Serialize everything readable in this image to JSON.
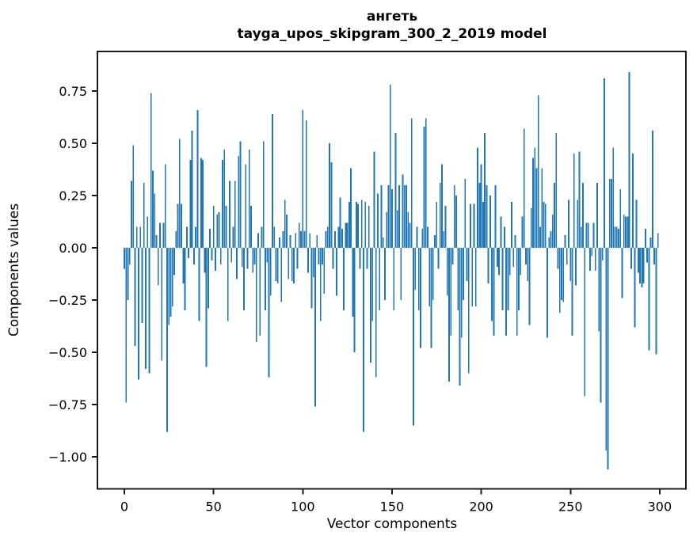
{
  "chart_data": {
    "type": "bar",
    "title_line1": "ангеть",
    "title_line2": "tayga_upos_skipgram_300_2_2019 model",
    "xlabel": "Vector components",
    "ylabel": "Components values",
    "bar_color": "#1f77b4",
    "spine_color": "#1a1a1a",
    "x_start": 0,
    "n_components": 300,
    "xlim": [
      -15,
      314
    ],
    "ylim": [
      -1.15,
      0.94
    ],
    "grid": false,
    "legend": null,
    "xticks": {
      "values": [
        0,
        50,
        100,
        150,
        200,
        250,
        300
      ],
      "labels": [
        "0",
        "50",
        "100",
        "150",
        "200",
        "250",
        "300"
      ]
    },
    "yticks": {
      "values": [
        0.75,
        0.5,
        0.25,
        0.0,
        -0.25,
        -0.5,
        -0.75,
        -1.0
      ],
      "labels": [
        "0.75",
        "0.50",
        "0.25",
        "0.00",
        "−0.25",
        "−0.50",
        "−0.75",
        "−1.00"
      ]
    },
    "values": [
      -0.1,
      -0.74,
      -0.25,
      -0.08,
      0.32,
      0.49,
      -0.47,
      0.1,
      -0.63,
      0.1,
      -0.36,
      0.31,
      -0.58,
      0.15,
      -0.6,
      0.74,
      0.37,
      0.26,
      0.06,
      -0.18,
      0.12,
      -0.54,
      0.12,
      0.4,
      -0.88,
      -0.37,
      -0.33,
      -0.28,
      -0.13,
      0.08,
      0.21,
      0.52,
      0.21,
      -0.17,
      -0.3,
      0.1,
      -0.05,
      0.42,
      0.56,
      -0.08,
      0.1,
      0.66,
      -0.35,
      0.43,
      0.42,
      -0.12,
      -0.57,
      -0.29,
      0.09,
      -0.06,
      0.2,
      -0.11,
      0.16,
      0.17,
      -0.08,
      0.42,
      0.47,
      0.2,
      -0.35,
      0.32,
      -0.07,
      0.1,
      0.32,
      -0.15,
      0.44,
      0.51,
      -0.09,
      -0.3,
      0.4,
      -0.1,
      0.47,
      0.2,
      -0.12,
      -0.08,
      -0.45,
      0.07,
      -0.42,
      0.1,
      0.51,
      -0.3,
      -0.07,
      -0.62,
      -0.23,
      0.64,
      0.1,
      -0.16,
      -0.17,
      0.05,
      -0.26,
      0.08,
      0.23,
      0.16,
      -0.15,
      0.06,
      -0.16,
      -0.17,
      0.07,
      -0.1,
      0.12,
      0.08,
      0.66,
      0.08,
      0.61,
      -0.12,
      0.07,
      -0.29,
      -0.14,
      -0.76,
      0.06,
      -0.08,
      -0.35,
      -0.08,
      -0.22,
      0.08,
      0.1,
      0.5,
      0.41,
      -0.1,
      0.08,
      -0.23,
      0.1,
      0.24,
      0.09,
      -0.3,
      0.12,
      0.12,
      0.22,
      0.38,
      -0.33,
      -0.5,
      0.22,
      0.21,
      -0.1,
      0.23,
      -0.88,
      0.22,
      -0.1,
      0.2,
      -0.55,
      -0.35,
      0.46,
      -0.62,
      0.26,
      -0.3,
      0.3,
      0.05,
      -0.25,
      0.17,
      0.3,
      0.78,
      0.28,
      -0.3,
      0.55,
      0.18,
      0.3,
      -0.25,
      0.35,
      0.3,
      0.3,
      0.17,
      0.12,
      0.62,
      -0.85,
      -0.2,
      0.1,
      -0.3,
      -0.48,
      0.09,
      0.58,
      0.62,
      0.1,
      -0.28,
      -0.48,
      -0.25,
      0.06,
      0.22,
      -0.1,
      0.31,
      0.4,
      0.08,
      0.2,
      -0.23,
      -0.64,
      -0.42,
      -0.08,
      0.3,
      0.25,
      -0.3,
      -0.66,
      -0.43,
      -0.25,
      0.33,
      -0.16,
      -0.6,
      0.21,
      -0.28,
      0.21,
      -0.28,
      0.48,
      0.31,
      0.4,
      0.22,
      0.55,
      0.3,
      -0.17,
      0.25,
      -0.35,
      -0.42,
      0.3,
      -0.09,
      -0.13,
      0.15,
      -0.3,
      0.1,
      -0.42,
      -0.3,
      -0.13,
      0.22,
      -0.09,
      0.06,
      -0.42,
      -0.3,
      -0.13,
      0.15,
      0.57,
      -0.08,
      -0.16,
      -0.37,
      0.19,
      0.43,
      0.48,
      0.38,
      0.73,
      0.1,
      0.38,
      0.22,
      0.21,
      -0.43,
      0.05,
      0.08,
      0.16,
      0.31,
      0.55,
      -0.1,
      -0.31,
      -0.25,
      -0.26,
      0.06,
      -0.08,
      0.23,
      -0.16,
      -0.42,
      0.45,
      -0.18,
      0.23,
      0.46,
      0.1,
      0.31,
      -0.71,
      0.12,
      0.12,
      -0.11,
      -0.04,
      0.12,
      -0.11,
      0.31,
      -0.4,
      -0.74,
      -0.06,
      0.81,
      -0.97,
      -1.06,
      0.33,
      0.33,
      0.48,
      0.1,
      0.1,
      0.09,
      0.28,
      -0.24,
      0.16,
      0.15,
      0.15,
      0.84,
      -0.1,
      0.45,
      -0.38,
      0.23,
      -0.12,
      -0.17,
      -0.19,
      -0.17,
      0.09,
      -0.07,
      -0.49,
      0.05,
      0.56,
      -0.08,
      -0.51,
      0.07
    ]
  }
}
